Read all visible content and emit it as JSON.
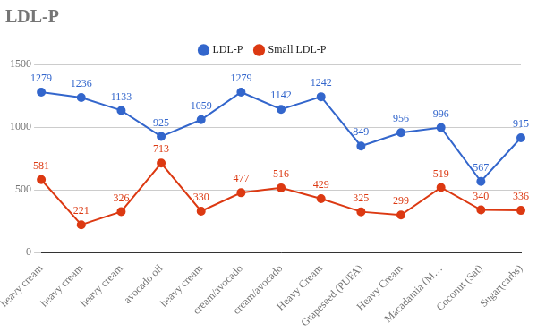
{
  "chart_data": {
    "type": "line",
    "title": "LDL-P",
    "categories": [
      "heavy cream",
      "heavy cream",
      "heavy cream",
      "avocado oil",
      "heavy cream",
      "cream/avocado",
      "cream/avocado",
      "Heavy Cream",
      "Grapeseed (PUFA)",
      "Heavy Cream",
      "Macadamia (M…",
      "Coconut (Sat)",
      "Sugar(carbs)"
    ],
    "series": [
      {
        "name": "LDL-P",
        "color": "#3366cc",
        "values": [
          1279,
          1236,
          1133,
          925,
          1059,
          1279,
          1142,
          1242,
          849,
          956,
          996,
          567,
          915
        ]
      },
      {
        "name": "Small LDL-P",
        "color": "#dc3912",
        "values": [
          581,
          221,
          326,
          713,
          330,
          477,
          516,
          429,
          325,
          299,
          519,
          340,
          336
        ]
      }
    ],
    "ylim": [
      0,
      1500
    ],
    "yticks": [
      0,
      500,
      1000,
      1500
    ],
    "grid": true,
    "legend": "top",
    "data_labels": true,
    "marker": "circle"
  }
}
